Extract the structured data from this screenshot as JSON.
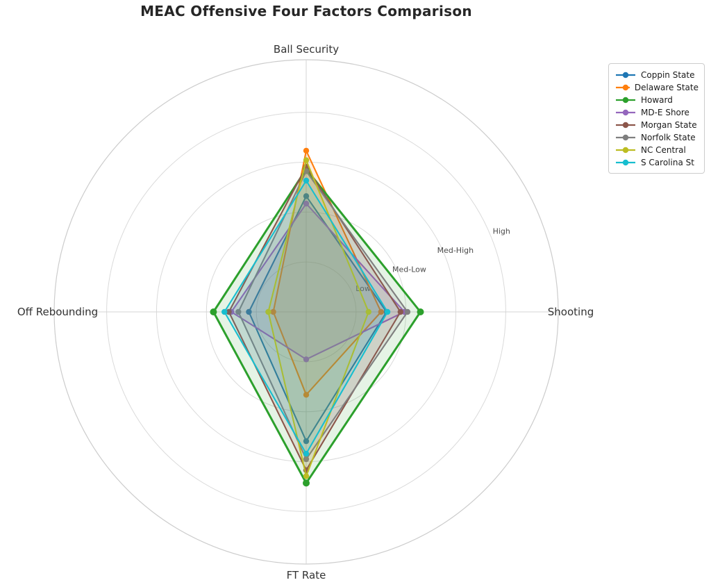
{
  "chart_data": {
    "type": "radar",
    "title": "MEAC Offensive Four Factors Comparison",
    "axes": [
      {
        "label": "Ball Security",
        "angle_deg": 90
      },
      {
        "label": "Shooting",
        "angle_deg": 0
      },
      {
        "label": "FT Rate",
        "angle_deg": -90
      },
      {
        "label": "Off Rebounding",
        "angle_deg": 180
      }
    ],
    "tick_labels": [
      "Low",
      "Med-Low",
      "Med-High",
      "High"
    ],
    "tick_values": [
      1,
      2,
      3,
      4
    ],
    "rmax": 5.05,
    "grid": true,
    "legend_position": "upper right",
    "value_order_note": "values follow axes order: Ball Security, Shooting, FT Rate, Off Rebounding (1=Low, 2=Med-Low, 3=Med-High, 4=High)",
    "series": [
      {
        "name": "Coppin State",
        "color": "#1f77b4",
        "values": [
          2.32,
          1.61,
          2.59,
          1.15
        ]
      },
      {
        "name": "Delaware State",
        "color": "#ff7f0e",
        "values": [
          3.23,
          1.5,
          1.66,
          0.66
        ]
      },
      {
        "name": "Howard",
        "color": "#2ca02c",
        "values": [
          2.86,
          2.29,
          3.43,
          1.86
        ],
        "emphasis": true
      },
      {
        "name": "MD-E Shore",
        "color": "#9467bd",
        "values": [
          2.17,
          1.97,
          0.95,
          1.5
        ]
      },
      {
        "name": "Morgan State",
        "color": "#8c564b",
        "values": [
          2.91,
          1.89,
          3.17,
          1.55
        ]
      },
      {
        "name": "Norfolk State",
        "color": "#7f7f7f",
        "values": [
          2.82,
          2.03,
          2.95,
          1.36
        ]
      },
      {
        "name": "NC Central",
        "color": "#bcbd22",
        "values": [
          3.04,
          1.25,
          3.29,
          0.76
        ]
      },
      {
        "name": "S Carolina St",
        "color": "#17becf",
        "values": [
          2.63,
          1.63,
          2.84,
          1.64
        ]
      }
    ]
  }
}
